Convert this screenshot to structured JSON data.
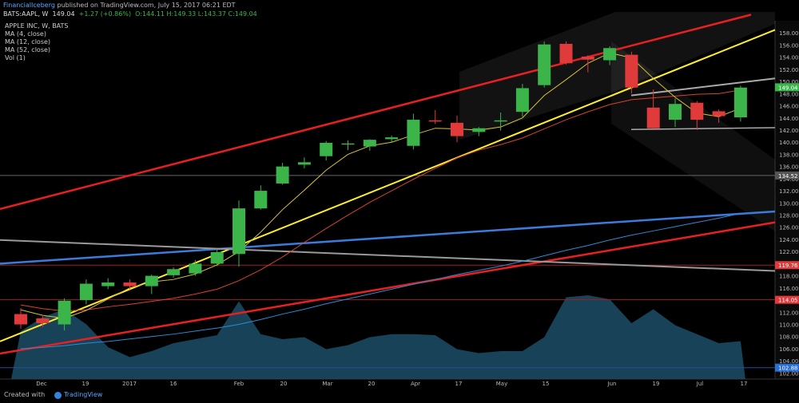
{
  "header": {
    "publisher": "FinancialIceberg",
    "published_text": "published on TradingView.com, July 15, 2017 06:21 EDT",
    "symbol": "BATS:AAPL, W",
    "last": "149.04",
    "change": "+1.27 (+0.86%)",
    "ohlc": "O:144.11 H:149.33 L:143.37 C:149.04"
  },
  "legend": [
    "APPLE INC, W, BATS",
    "MA (4, close)",
    "MA (12, close)",
    "MA (52, close)",
    "Vol (1)"
  ],
  "footer": {
    "created_with": "Created with",
    "brand": "TradingView"
  },
  "colors": {
    "background": "#000000",
    "up": "#3bb54a",
    "down": "#e03a3a",
    "ma4": "#d6c238",
    "ma12": "#d6442e",
    "ma52": "#2e8bd6",
    "volume": "#1b4e66",
    "trend_red": "#e8201f",
    "trend_yellow": "#ffee2a",
    "trend_blue": "#3a7bdc",
    "trend_gray": "#9a9a9a"
  },
  "chart_data": {
    "type": "candlestick",
    "x_ticks": [
      "Dec",
      "19",
      "2017",
      "16",
      "Feb",
      "20",
      "Mar",
      "20",
      "Apr",
      "17",
      "May",
      "15",
      "Jun",
      "19",
      "Jul",
      "17"
    ],
    "y_ticks": [
      102,
      104,
      106,
      108,
      110,
      112,
      114,
      116,
      118,
      120,
      122,
      124,
      126,
      128,
      130,
      132,
      134,
      136,
      138,
      140,
      142,
      144,
      146,
      148,
      150,
      152,
      154,
      156,
      158
    ],
    "ylim": [
      101,
      160
    ],
    "price_labels": [
      {
        "text": "149.04",
        "value": 149.04,
        "color": "#3bb54a"
      },
      {
        "text": "134.52",
        "value": 134.52,
        "color": "#555555"
      },
      {
        "text": "119.76",
        "value": 119.76,
        "color": "#e03a3a"
      },
      {
        "text": "114.05",
        "value": 114.05,
        "color": "#e03a3a"
      },
      {
        "text": "102.88",
        "value": 102.88,
        "color": "#2a6fd6"
      }
    ],
    "candles": [
      {
        "o": 111.7,
        "h": 112.7,
        "l": 109.3,
        "c": 110.0
      },
      {
        "o": 111.0,
        "h": 111.6,
        "l": 109.6,
        "c": 110.2
      },
      {
        "o": 110.0,
        "h": 114.3,
        "l": 109.0,
        "c": 113.9
      },
      {
        "o": 114.0,
        "h": 117.4,
        "l": 113.3,
        "c": 116.7
      },
      {
        "o": 116.3,
        "h": 117.6,
        "l": 115.8,
        "c": 116.9
      },
      {
        "o": 116.9,
        "h": 117.4,
        "l": 115.8,
        "c": 116.3
      },
      {
        "o": 116.3,
        "h": 118.2,
        "l": 115.0,
        "c": 118.0
      },
      {
        "o": 118.1,
        "h": 119.4,
        "l": 117.7,
        "c": 119.1
      },
      {
        "o": 118.4,
        "h": 120.6,
        "l": 118.0,
        "c": 120.0
      },
      {
        "o": 120.0,
        "h": 122.5,
        "l": 119.6,
        "c": 121.9
      },
      {
        "o": 121.6,
        "h": 130.4,
        "l": 119.5,
        "c": 129.1
      },
      {
        "o": 129.1,
        "h": 132.9,
        "l": 128.9,
        "c": 132.0
      },
      {
        "o": 133.2,
        "h": 136.6,
        "l": 133.0,
        "c": 136.0
      },
      {
        "o": 136.3,
        "h": 137.5,
        "l": 135.7,
        "c": 136.7
      },
      {
        "o": 137.7,
        "h": 140.2,
        "l": 137.0,
        "c": 139.9
      },
      {
        "o": 139.7,
        "h": 140.3,
        "l": 138.7,
        "c": 139.8
      },
      {
        "o": 139.3,
        "h": 140.5,
        "l": 138.6,
        "c": 140.4
      },
      {
        "o": 140.5,
        "h": 141.1,
        "l": 139.9,
        "c": 140.8
      },
      {
        "o": 139.4,
        "h": 144.7,
        "l": 138.8,
        "c": 143.7
      },
      {
        "o": 143.6,
        "h": 145.3,
        "l": 143.0,
        "c": 143.4
      },
      {
        "o": 143.2,
        "h": 144.4,
        "l": 140.0,
        "c": 141.0
      },
      {
        "o": 141.7,
        "h": 142.5,
        "l": 141.0,
        "c": 142.3
      },
      {
        "o": 143.4,
        "h": 144.9,
        "l": 141.9,
        "c": 143.6
      },
      {
        "o": 145.0,
        "h": 149.6,
        "l": 144.2,
        "c": 148.9
      },
      {
        "o": 149.4,
        "h": 156.6,
        "l": 149.0,
        "c": 156.1
      },
      {
        "o": 156.2,
        "h": 156.6,
        "l": 152.8,
        "c": 153.0
      },
      {
        "o": 154.1,
        "h": 154.3,
        "l": 151.5,
        "c": 153.6
      },
      {
        "o": 153.5,
        "h": 155.8,
        "l": 152.7,
        "c": 155.5
      },
      {
        "o": 154.4,
        "h": 154.9,
        "l": 148.0,
        "c": 149.0
      },
      {
        "o": 145.7,
        "h": 148.7,
        "l": 142.2,
        "c": 142.3
      },
      {
        "o": 143.7,
        "h": 147.2,
        "l": 142.5,
        "c": 146.3
      },
      {
        "o": 146.5,
        "h": 146.8,
        "l": 142.0,
        "c": 143.7
      },
      {
        "o": 145.1,
        "h": 145.4,
        "l": 143.2,
        "c": 144.3
      },
      {
        "o": 144.1,
        "h": 149.3,
        "l": 143.4,
        "c": 149.0
      }
    ],
    "ma4": [
      112.4,
      111.5,
      111.0,
      112.3,
      114.2,
      116.0,
      117.0,
      117.4,
      118.3,
      119.8,
      122.0,
      125.2,
      128.9,
      132.1,
      135.4,
      138.0,
      139.4,
      140.0,
      141.2,
      142.3,
      142.2,
      142.0,
      142.5,
      144.0,
      147.7,
      150.3,
      153.0,
      154.7,
      153.9,
      150.5,
      147.4,
      144.8,
      144.2,
      145.6
    ],
    "ma12": [
      113.2,
      112.6,
      112.2,
      112.4,
      112.9,
      113.3,
      113.8,
      114.3,
      115.0,
      115.8,
      117.2,
      119.0,
      121.1,
      123.5,
      125.8,
      128.0,
      130.1,
      132.0,
      133.9,
      135.7,
      137.4,
      138.7,
      139.6,
      140.7,
      142.2,
      143.7,
      145.0,
      146.2,
      147.0,
      147.3,
      147.6,
      147.9,
      148.0,
      148.6
    ],
    "ma52": [
      106.0,
      106.2,
      106.5,
      106.9,
      107.2,
      107.6,
      108.0,
      108.4,
      108.9,
      109.4,
      110.0,
      110.8,
      111.7,
      112.5,
      113.4,
      114.2,
      115.0,
      115.8,
      116.6,
      117.4,
      118.2,
      118.9,
      119.6,
      120.4,
      121.3,
      122.2,
      123.0,
      123.9,
      124.7,
      125.4,
      126.1,
      126.8,
      127.5,
      128.3
    ],
    "volume": [
      48,
      62,
      70,
      55,
      32,
      22,
      28,
      36,
      40,
      44,
      78,
      45,
      40,
      42,
      30,
      34,
      42,
      45,
      45,
      44,
      30,
      26,
      28,
      28,
      42,
      82,
      84,
      80,
      56,
      70,
      54,
      45,
      36,
      38
    ]
  }
}
